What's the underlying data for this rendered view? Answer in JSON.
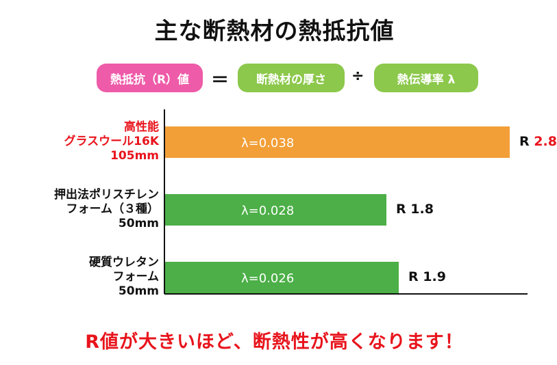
{
  "title": "主な断熱材の熱抵抗値",
  "formula": {
    "left": "熱抵抗（R）値",
    "equals": "＝",
    "middle": "断熱材の厚さ",
    "divide": "÷",
    "right": "熱伝導率 λ",
    "colors": {
      "left": "#ee5ba8",
      "middle": "#8cc84b",
      "right": "#8cc84b"
    }
  },
  "chart_data": {
    "type": "bar",
    "orientation": "horizontal",
    "xlim": [
      0,
      3.0
    ],
    "categories": [
      {
        "lines": [
          "高性能",
          "グラスウール16K",
          "105mm"
        ],
        "color": "#e8141c"
      },
      {
        "lines": [
          "押出法ポリスチレン",
          "フォーム（３種）",
          "50mm"
        ],
        "color": "#111111"
      },
      {
        "lines": [
          "硬質ウレタン",
          "フォーム",
          "50mm"
        ],
        "color": "#111111"
      }
    ],
    "values": [
      2.8,
      1.8,
      1.9
    ],
    "bar_labels": [
      "λ=0.038",
      "λ=0.028",
      "λ=0.026"
    ],
    "value_labels": [
      {
        "prefix": "R",
        "num": "2.8",
        "num_color": "#e8141c"
      },
      {
        "prefix": "R",
        "num": "1.8",
        "num_color": "#111111"
      },
      {
        "prefix": "R",
        "num": "1.9",
        "num_color": "#111111"
      }
    ],
    "bar_colors": [
      "#f29f38",
      "#4caf47",
      "#4caf47"
    ]
  },
  "footer": "R値が大きいほど、断熱性が高くなります！"
}
